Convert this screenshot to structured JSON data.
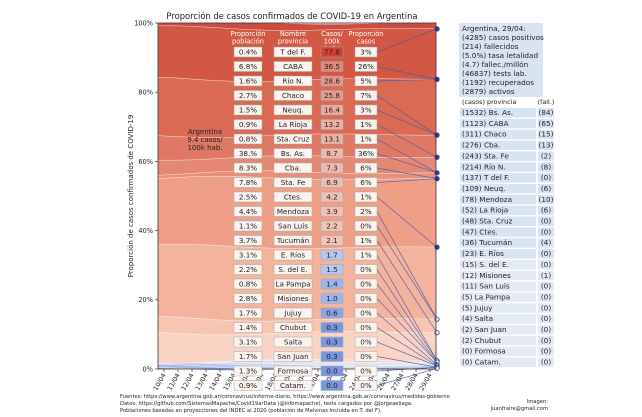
{
  "chart_data": {
    "type": "area",
    "title": "Proporción de casos confirmados de COVID-19 en Argentina",
    "ylabel": "Proporción de casos confirmados de COVID-19",
    "ylim": [
      0,
      100
    ],
    "yticks": [
      "0%",
      "20%",
      "40%",
      "60%",
      "80%",
      "100%"
    ],
    "x": [
      "10/04",
      "11/04",
      "12/04",
      "13/04",
      "14/04",
      "15/04",
      "16/04",
      "17/04",
      "18/04",
      "19/04",
      "20/04",
      "21/04",
      "22/04",
      "23/04",
      "24/04",
      "25/04",
      "26/04",
      "27/04",
      "28/04",
      "29/04"
    ],
    "table_headers": {
      "poblacion": "Proporción población",
      "provincia": "Nombre provincia",
      "casos100k": "Casos/ 100k hab.",
      "proporcion": "Proporción casos"
    },
    "table_rows": [
      {
        "pob": "0.4%",
        "prov": "T del F.",
        "c100k": "77.8",
        "prop": "3%"
      },
      {
        "pob": "6.8%",
        "prov": "CABA",
        "c100k": "36.5",
        "prop": "26%"
      },
      {
        "pob": "1.6%",
        "prov": "Río N.",
        "c100k": "28.6",
        "prop": "5%"
      },
      {
        "pob": "2.7%",
        "prov": "Chaco",
        "c100k": "25.8",
        "prop": "7%"
      },
      {
        "pob": "1.5%",
        "prov": "Neuq.",
        "c100k": "16.4",
        "prop": "3%"
      },
      {
        "pob": "0.9%",
        "prov": "La Rioja",
        "c100k": "13.2",
        "prop": "1%"
      },
      {
        "pob": "0.8%",
        "prov": "Sta. Cruz",
        "c100k": "13.1",
        "prop": "1%"
      },
      {
        "pob": "38.%",
        "prov": "Bs. As.",
        "c100k": "8.7",
        "prop": "36%"
      },
      {
        "pob": "8.3%",
        "prov": "Cba.",
        "c100k": "7.3",
        "prop": "6%"
      },
      {
        "pob": "7.8%",
        "prov": "Sta. Fe",
        "c100k": "6.9",
        "prop": "6%"
      },
      {
        "pob": "2.5%",
        "prov": "Ctes.",
        "c100k": "4.2",
        "prop": "1%"
      },
      {
        "pob": "4.4%",
        "prov": "Mendoza",
        "c100k": "3.9",
        "prop": "2%"
      },
      {
        "pob": "1.1%",
        "prov": "San Luis",
        "c100k": "2.2",
        "prop": "0%"
      },
      {
        "pob": "3.7%",
        "prov": "Tucumán",
        "c100k": "2.1",
        "prop": "1%"
      },
      {
        "pob": "3.1%",
        "prov": "E. Ríos",
        "c100k": "1.7",
        "prop": "1%"
      },
      {
        "pob": "2.2%",
        "prov": "S. del E.",
        "c100k": "1.5",
        "prop": "0%"
      },
      {
        "pob": "0.8%",
        "prov": "La Pampa",
        "c100k": "1.4",
        "prop": "0%"
      },
      {
        "pob": "2.8%",
        "prov": "Misiones",
        "c100k": "1.0",
        "prop": "0%"
      },
      {
        "pob": "1.7%",
        "prov": "Jujuy",
        "c100k": "0.6",
        "prop": "0%"
      },
      {
        "pob": "1.4%",
        "prov": "Chubut",
        "c100k": "0.3",
        "prop": "0%"
      },
      {
        "pob": "3.1%",
        "prov": "Salta",
        "c100k": "0.3",
        "prop": "0%"
      },
      {
        "pob": "1.7%",
        "prov": "San Juan",
        "c100k": "0.3",
        "prop": "0%"
      },
      {
        "pob": "1.3%",
        "prov": "Formosa",
        "c100k": "0.0",
        "prop": "0%"
      },
      {
        "pob": "0.9%",
        "prov": "Catam.",
        "c100k": "0.0",
        "prop": "0%"
      }
    ],
    "argentina_label": [
      "Argentina",
      "9.4 casos/",
      "100k hab."
    ],
    "summary": [
      "Argentina, 29/04:",
      "(4285) casos positivos",
      "(214) fallecidos",
      "(5.0%) tasa letalidad",
      "(4.7) fallec./millón",
      "(46837) tests lab.",
      "(1192) recuperados",
      "(2879) activos"
    ],
    "legend_header": {
      "casos": "(casos) provincia",
      "fall": "(fall.)"
    },
    "legend_rows": [
      {
        "casos": "(1532) Bs. As.",
        "fall": "(84)"
      },
      {
        "casos": "(1123) CABA",
        "fall": "(65)"
      },
      {
        "casos": "(311) Chaco",
        "fall": "(15)"
      },
      {
        "casos": "(276) Cba.",
        "fall": "(13)"
      },
      {
        "casos": "(243) Sta. Fe",
        "fall": "(2)"
      },
      {
        "casos": "(214) Río N.",
        "fall": "(8)"
      },
      {
        "casos": "(137) T del F.",
        "fall": "(0)"
      },
      {
        "casos": "(109) Neuq.",
        "fall": "(6)"
      },
      {
        "casos": "(78) Mendoza",
        "fall": "(10)"
      },
      {
        "casos": "(52) La Rioja",
        "fall": "(6)"
      },
      {
        "casos": "(48) Sta. Cruz",
        "fall": "(0)"
      },
      {
        "casos": "(47) Ctes.",
        "fall": "(0)"
      },
      {
        "casos": "(36) Tucumán",
        "fall": "(4)"
      },
      {
        "casos": "(23) E. Ríos",
        "fall": "(0)"
      },
      {
        "casos": "(15) S. del E.",
        "fall": "(0)"
      },
      {
        "casos": "(12) Misiones",
        "fall": "(1)"
      },
      {
        "casos": "(11) San Luis",
        "fall": "(0)"
      },
      {
        "casos": "(5) La Pampa",
        "fall": "(0)"
      },
      {
        "casos": "(5) Jujuy",
        "fall": "(0)"
      },
      {
        "casos": "(4) Salta",
        "fall": "(0)"
      },
      {
        "casos": "(2) San Juan",
        "fall": "(0)"
      },
      {
        "casos": "(2) Chubut",
        "fall": "(0)"
      },
      {
        "casos": "(0) Formosa",
        "fall": "(0)"
      },
      {
        "casos": "(0) Catam.",
        "fall": "(0)"
      }
    ],
    "cumulative_pct_29_04": [
      98.3,
      83.7,
      67.6,
      61.2,
      56.7,
      55.0,
      35.2,
      14.4,
      10.5,
      2.4,
      2.0,
      1.2,
      0.9,
      0.5,
      0.2
    ],
    "footer": [
      "Fuentes: https://www.argentina.gob.ar/coronavirus/informe-diario, https://www.argentina.gob.ar/coronavirus/medidas-gobierno",
      "Datos: https://github.com/SistemasMapache/Covid19arData (@infomapache), tests cargados por @jorgeaeliaga.",
      "Poblaciones basadas en proyecciones del INDEC al 2020 (población de Malvinas incluida en T. del F)."
    ],
    "credit": [
      "Imagen:",
      "juanfraire@gmail.com"
    ]
  }
}
